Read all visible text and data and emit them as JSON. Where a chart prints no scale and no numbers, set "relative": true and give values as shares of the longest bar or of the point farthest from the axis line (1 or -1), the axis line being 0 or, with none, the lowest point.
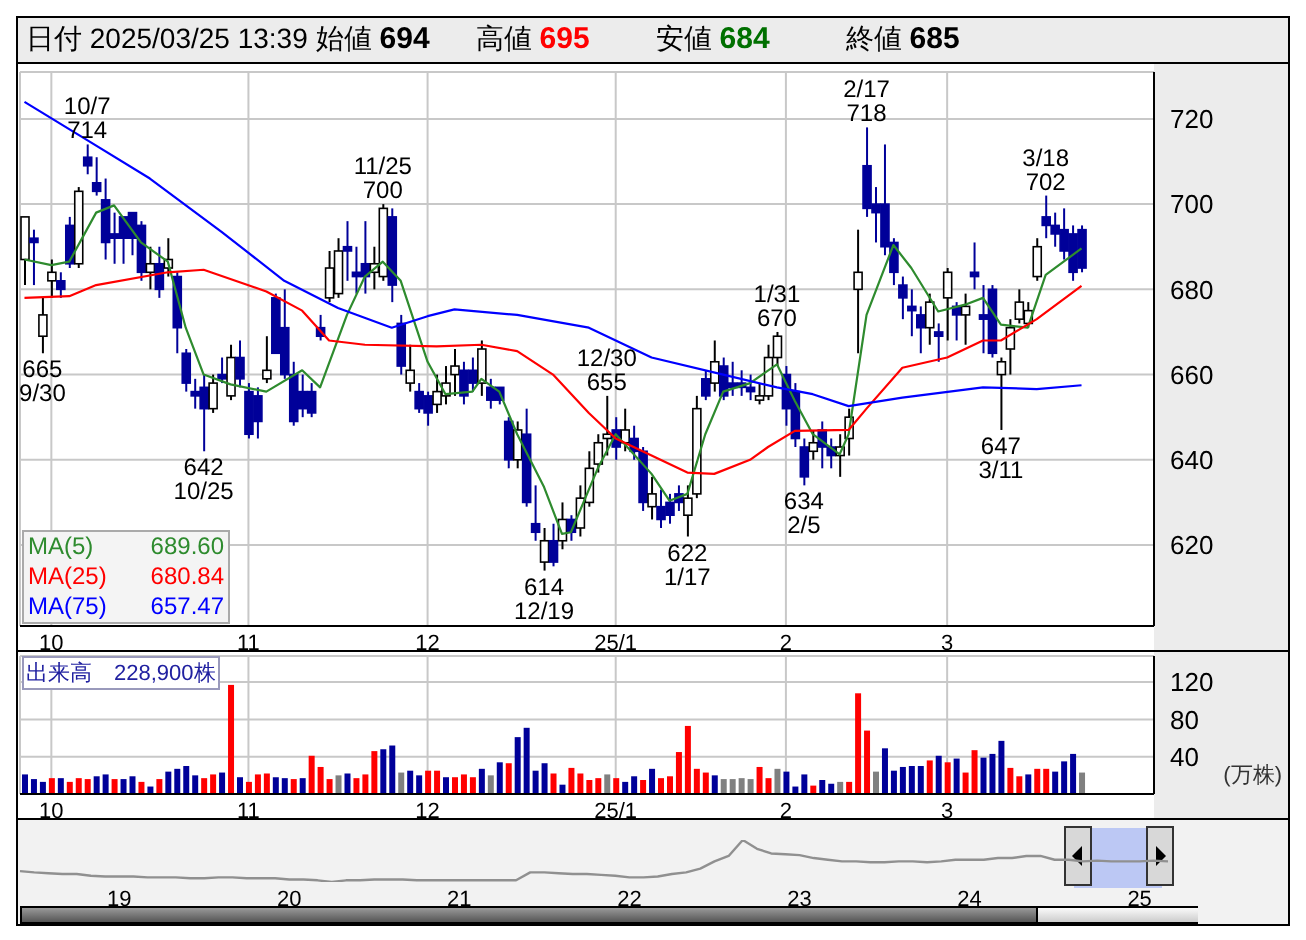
{
  "chart_data": [
    {
      "type": "candlestick",
      "title": "日付 2025/03/25 13:39",
      "grid": true,
      "ylim": [
        601,
        731
      ],
      "yticks": [
        620,
        640,
        660,
        680,
        700,
        720
      ],
      "annotations": [
        "始値 694",
        "高値 695",
        "安値 684",
        "終値 685",
        {
          "text": "10/7\n714",
          "y": 714
        },
        {
          "text": "665\n9/30",
          "y": 665
        },
        {
          "text": "642\n10/25",
          "y": 642
        },
        {
          "text": "11/25\n700",
          "y": 700
        },
        {
          "text": "614\n12/19",
          "y": 614
        },
        {
          "text": "12/30\n655",
          "y": 655
        },
        {
          "text": "622\n1/17",
          "y": 622
        },
        {
          "text": "1/31\n670",
          "y": 670
        },
        {
          "text": "634\n2/5",
          "y": 634
        },
        {
          "text": "2/17\n718",
          "y": 718
        },
        {
          "text": "647\n3/11",
          "y": 647
        },
        {
          "text": "3/18\n702",
          "y": 702
        }
      ],
      "categories": [
        null,
        null,
        null,
        "10",
        null,
        null,
        null,
        null,
        null,
        null,
        null,
        null,
        null,
        null,
        null,
        null,
        null,
        null,
        null,
        null,
        null,
        null,
        null,
        null,
        null,
        "11",
        null,
        null,
        null,
        null,
        null,
        null,
        null,
        null,
        null,
        null,
        null,
        null,
        null,
        null,
        null,
        null,
        null,
        null,
        null,
        "12",
        null,
        null,
        null,
        null,
        null,
        null,
        null,
        null,
        null,
        null,
        null,
        null,
        null,
        null,
        null,
        null,
        null,
        null,
        null,
        null,
        "25/1",
        null,
        null,
        null,
        null,
        null,
        null,
        null,
        null,
        null,
        null,
        null,
        null,
        null,
        null,
        null,
        null,
        null,
        null,
        "2",
        null,
        null,
        null,
        null,
        null,
        null,
        null,
        null,
        null,
        null,
        null,
        null,
        null,
        null,
        null,
        null,
        null,
        "3",
        null,
        null,
        null,
        null,
        null,
        null,
        null,
        null,
        null,
        null,
        null,
        null,
        null,
        null,
        null
      ],
      "ohlc": [
        [
          687,
          697,
          681,
          697
        ],
        [
          692,
          694,
          681,
          691
        ],
        [
          669,
          678,
          665,
          674
        ],
        [
          682,
          687,
          678,
          684
        ],
        [
          682,
          684,
          678,
          680
        ],
        [
          695,
          697,
          685,
          686
        ],
        [
          686,
          704,
          685,
          703
        ],
        [
          711,
          714,
          707,
          709
        ],
        [
          705,
          711,
          702,
          703
        ],
        [
          701,
          706,
          687,
          691
        ],
        [
          693,
          698,
          686,
          692
        ],
        [
          697,
          697,
          686,
          692
        ],
        [
          698,
          698,
          688,
          692
        ],
        [
          695,
          696,
          682,
          684
        ],
        [
          684,
          690,
          680,
          686
        ],
        [
          686,
          690,
          678,
          680
        ],
        [
          685,
          692,
          683,
          687
        ],
        [
          683,
          684,
          665,
          671
        ],
        [
          665,
          666,
          656,
          658
        ],
        [
          656,
          659,
          652,
          655
        ],
        [
          657,
          660,
          642,
          652
        ],
        [
          652,
          660,
          651,
          658
        ],
        [
          660,
          664,
          658,
          659
        ],
        [
          655,
          667,
          654,
          664
        ],
        [
          664,
          668,
          657,
          659
        ],
        [
          656,
          658,
          645,
          646
        ],
        [
          655,
          657,
          645,
          649
        ],
        [
          659,
          669,
          658,
          661
        ],
        [
          678,
          679,
          665,
          665
        ],
        [
          671,
          680,
          659,
          660
        ],
        [
          660,
          663,
          648,
          649
        ],
        [
          656,
          660,
          650,
          652
        ],
        [
          656,
          658,
          650,
          651
        ],
        [
          671,
          674,
          668,
          669
        ],
        [
          678,
          689,
          677,
          685
        ],
        [
          679,
          692,
          678,
          689
        ],
        [
          690,
          696,
          682,
          689
        ],
        [
          684,
          690,
          679,
          683
        ],
        [
          686,
          696,
          679,
          683
        ],
        [
          684,
          690,
          680,
          686
        ],
        [
          683,
          700,
          682,
          699
        ],
        [
          697,
          699,
          677,
          681
        ],
        [
          672,
          674,
          660,
          662
        ],
        [
          658,
          667,
          656,
          661
        ],
        [
          656,
          658,
          651,
          652
        ],
        [
          655,
          656,
          648,
          651
        ],
        [
          653,
          660,
          651,
          656
        ],
        [
          655,
          662,
          653,
          658
        ],
        [
          660,
          666,
          655,
          662
        ],
        [
          661,
          663,
          653,
          655
        ],
        [
          661,
          664,
          656,
          658
        ],
        [
          658,
          668,
          655,
          666
        ],
        [
          657,
          659,
          652,
          654
        ],
        [
          657,
          657,
          653,
          654
        ],
        [
          649,
          650,
          638,
          640
        ],
        [
          640,
          649,
          638,
          647
        ],
        [
          646,
          652,
          629,
          630
        ],
        [
          625,
          634,
          621,
          623
        ],
        [
          616,
          624,
          614,
          621
        ],
        [
          621,
          625,
          615,
          616
        ],
        [
          621,
          630,
          619,
          626
        ],
        [
          626,
          627,
          621,
          623
        ],
        [
          624,
          634,
          622,
          631
        ],
        [
          630,
          642,
          629,
          638
        ],
        [
          639,
          646,
          637,
          644
        ],
        [
          645,
          655,
          641,
          646
        ],
        [
          647,
          650,
          640,
          643
        ],
        [
          644,
          652,
          642,
          647
        ],
        [
          645,
          648,
          640,
          642
        ],
        [
          642,
          643,
          628,
          630
        ],
        [
          629,
          636,
          626,
          632
        ],
        [
          629,
          633,
          624,
          626
        ],
        [
          630,
          632,
          625,
          627
        ],
        [
          632,
          634,
          628,
          630
        ],
        [
          627,
          634,
          622,
          631
        ],
        [
          632,
          655,
          631,
          652
        ],
        [
          659,
          661,
          654,
          655
        ],
        [
          658,
          668,
          656,
          663
        ],
        [
          662,
          664,
          654,
          655
        ],
        [
          658,
          663,
          655,
          657
        ],
        [
          658,
          661,
          655,
          657
        ],
        [
          657,
          660,
          654,
          656
        ],
        [
          654,
          658,
          653,
          655
        ],
        [
          655,
          667,
          654,
          664
        ],
        [
          664,
          670,
          662,
          669
        ],
        [
          660,
          662,
          648,
          652
        ],
        [
          656,
          658,
          643,
          645
        ],
        [
          643,
          645,
          634,
          636
        ],
        [
          642,
          647,
          640,
          644
        ],
        [
          647,
          649,
          638,
          643
        ],
        [
          643,
          645,
          638,
          641
        ],
        [
          641,
          646,
          636,
          643
        ],
        [
          645,
          652,
          641,
          650
        ],
        [
          680,
          694,
          665,
          684
        ],
        [
          709,
          718,
          697,
          699
        ],
        [
          700,
          704,
          691,
          698
        ],
        [
          700,
          714,
          688,
          690
        ],
        [
          691,
          692,
          681,
          684
        ],
        [
          681,
          683,
          673,
          678
        ],
        [
          676,
          680,
          669,
          675
        ],
        [
          674,
          676,
          665,
          671
        ],
        [
          671,
          679,
          667,
          677
        ],
        [
          670,
          672,
          663,
          669
        ],
        [
          678,
          685,
          668,
          684
        ],
        [
          676,
          677,
          668,
          674
        ],
        [
          674,
          679,
          667,
          676
        ],
        [
          684,
          691,
          680,
          683
        ],
        [
          674,
          681,
          665,
          673
        ],
        [
          680,
          681,
          664,
          665
        ],
        [
          660,
          664,
          647,
          663
        ],
        [
          666,
          673,
          660,
          671
        ],
        [
          673,
          680,
          672,
          677
        ],
        [
          672,
          677,
          671,
          675
        ],
        [
          683,
          692,
          682,
          690
        ],
        [
          697,
          702,
          692,
          695
        ],
        [
          695,
          698,
          690,
          693
        ],
        [
          694,
          699,
          687,
          689
        ],
        [
          693,
          695,
          682,
          684
        ],
        [
          694,
          695,
          684,
          685
        ]
      ],
      "series": [
        {
          "name": "MA(5) 689.60",
          "type": "line",
          "color": "#2e8b2e",
          "values": [
            687,
            null,
            null,
            685.7,
            null,
            686.5,
            null,
            null,
            698,
            null,
            699.7,
            null,
            null,
            691,
            null,
            null,
            686.5,
            null,
            671,
            null,
            660,
            null,
            null,
            657.7,
            null,
            null,
            null,
            656,
            null,
            null,
            null,
            661,
            null,
            657,
            null,
            null,
            674,
            null,
            683,
            null,
            686.5,
            null,
            682,
            null,
            null,
            663,
            null,
            655.4,
            null,
            null,
            656,
            659,
            null,
            656,
            null,
            646,
            null,
            null,
            633.6,
            null,
            622.6,
            623,
            null,
            null,
            638,
            null,
            646,
            null,
            null,
            null,
            636.7,
            null,
            630.4,
            null,
            632,
            null,
            646,
            null,
            656,
            null,
            null,
            658,
            null,
            null,
            662.4,
            null,
            653.8,
            null,
            646,
            null,
            null,
            641.3,
            646,
            null,
            674,
            null,
            null,
            690.4,
            null,
            685,
            null,
            null,
            674.8,
            null,
            null,
            676.4,
            null,
            678,
            null,
            671.7,
            null,
            null,
            671,
            null,
            683.4,
            null,
            null,
            null,
            689.6
          ]
        },
        {
          "name": "MA(25) 680.84",
          "type": "line",
          "color": "#ff0000",
          "values": [
            678,
            null,
            null,
            null,
            null,
            678.4,
            null,
            null,
            681,
            null,
            null,
            null,
            null,
            null,
            null,
            null,
            684,
            null,
            null,
            null,
            684.6,
            null,
            null,
            null,
            null,
            null,
            null,
            679.5,
            null,
            null,
            null,
            675,
            null,
            null,
            668,
            null,
            null,
            null,
            667,
            null,
            null,
            null,
            null,
            null,
            null,
            null,
            666.6,
            null,
            null,
            null,
            null,
            667,
            null,
            null,
            null,
            665.5,
            null,
            null,
            null,
            660,
            null,
            null,
            null,
            651,
            null,
            null,
            645,
            null,
            null,
            null,
            641,
            null,
            null,
            null,
            637,
            null,
            null,
            636.7,
            null,
            null,
            null,
            640,
            null,
            643,
            null,
            null,
            646.8,
            null,
            null,
            null,
            null,
            null,
            647,
            null,
            652,
            null,
            null,
            null,
            661.6,
            null,
            null,
            null,
            null,
            664,
            null,
            null,
            null,
            668,
            null,
            668,
            null,
            null,
            null,
            673,
            null,
            null,
            null,
            null,
            680.8
          ]
        },
        {
          "name": "MA(75) 657.47",
          "type": "line",
          "color": "#0000ff",
          "values": [
            724,
            null,
            null,
            null,
            null,
            null,
            null,
            715,
            null,
            null,
            null,
            null,
            null,
            null,
            706,
            null,
            null,
            null,
            null,
            null,
            null,
            null,
            693.5,
            null,
            null,
            null,
            null,
            null,
            null,
            682,
            null,
            null,
            null,
            null,
            null,
            675.6,
            null,
            null,
            null,
            null,
            null,
            671,
            null,
            null,
            null,
            673.7,
            null,
            null,
            675.3,
            null,
            null,
            null,
            null,
            null,
            null,
            674,
            null,
            null,
            null,
            null,
            null,
            null,
            null,
            671,
            null,
            null,
            null,
            null,
            null,
            null,
            664,
            null,
            null,
            null,
            null,
            null,
            null,
            null,
            660,
            null,
            null,
            null,
            null,
            null,
            657,
            null,
            null,
            null,
            655.4,
            null,
            null,
            null,
            652.6,
            null,
            null,
            null,
            null,
            null,
            654.6,
            null,
            null,
            null,
            null,
            null,
            null,
            null,
            null,
            657,
            null,
            null,
            null,
            null,
            null,
            656.6,
            null,
            null,
            null,
            null,
            657.5
          ]
        }
      ]
    },
    {
      "type": "bar",
      "title": "出来高　228,900株",
      "ylabel": "(万株)",
      "grid": true,
      "ylim": [
        0,
        148
      ],
      "yticks": [
        40,
        80,
        120
      ],
      "categories": [
        null,
        null,
        null,
        "10",
        null,
        null,
        null,
        null,
        null,
        null,
        null,
        null,
        null,
        null,
        null,
        null,
        null,
        null,
        null,
        null,
        null,
        null,
        null,
        null,
        null,
        "11",
        null,
        null,
        null,
        null,
        null,
        null,
        null,
        null,
        null,
        null,
        null,
        null,
        null,
        null,
        null,
        null,
        null,
        null,
        null,
        "12",
        null,
        null,
        null,
        null,
        null,
        null,
        null,
        null,
        null,
        null,
        null,
        null,
        null,
        null,
        null,
        null,
        null,
        null,
        null,
        null,
        "25/1",
        null,
        null,
        null,
        null,
        null,
        null,
        null,
        null,
        null,
        null,
        null,
        null,
        null,
        null,
        null,
        null,
        null,
        null,
        "2",
        null,
        null,
        null,
        null,
        null,
        null,
        null,
        null,
        null,
        null,
        null,
        null,
        null,
        null,
        null,
        null,
        null,
        "3",
        null,
        null,
        null,
        null,
        null,
        null,
        null,
        null,
        null,
        null,
        null,
        null,
        null,
        null,
        null
      ],
      "values": [
        21,
        16,
        13,
        17,
        17,
        13,
        17,
        16,
        19,
        21,
        16,
        16,
        19,
        13,
        8,
        16,
        24,
        27,
        30,
        20,
        17,
        21,
        23,
        117,
        18,
        13,
        21,
        22,
        18,
        17,
        16,
        17,
        41,
        29,
        16,
        20,
        22,
        17,
        21,
        46,
        48,
        52,
        23,
        25,
        20,
        25,
        25,
        18,
        18,
        21,
        18,
        27,
        20,
        34,
        33,
        61,
        71,
        25,
        33,
        22,
        10,
        28,
        22,
        15,
        17,
        21,
        17,
        13,
        19,
        15,
        27,
        17,
        19,
        45,
        73,
        27,
        23,
        20,
        16,
        16,
        17,
        16,
        29,
        17,
        27,
        24,
        8,
        21,
        9,
        15,
        11,
        13,
        13,
        108,
        68,
        24,
        49,
        25,
        29,
        30,
        30,
        36,
        41,
        34,
        38,
        23,
        47,
        39,
        43,
        57,
        28,
        19,
        21,
        27,
        27,
        24,
        35,
        43,
        23
      ],
      "colors": [
        "#000099",
        "#000099",
        "#000099",
        "#ff0000",
        "#000099",
        "#ff0000",
        "#ff0000",
        "#ff0000",
        "#000099",
        "#000099",
        "#ff0000",
        "#000099",
        "#000099",
        "#ff0000",
        "#000099",
        "#ff0000",
        "#000099",
        "#000099",
        "#000099",
        "#000099",
        "#ff0000",
        "#ff0000",
        "#000099",
        "#ff0000",
        "#000099",
        "#ff0000",
        "#ff0000",
        "#ff0000",
        "#000099",
        "#000099",
        "#ff0000",
        "#000099",
        "#ff0000",
        "#ff0000",
        "#ff0000",
        "#808080",
        "#000099",
        "#ff0000",
        "#ff0000",
        "#ff0000",
        "#000099",
        "#000099",
        "#808080",
        "#000099",
        "#000099",
        "#ff0000",
        "#ff0000",
        "#000099",
        "#ff0000",
        "#ff0000",
        "#ff0000",
        "#000099",
        "#808080",
        "#000099",
        "#ff0000",
        "#000099",
        "#000099",
        "#000099",
        "#000099",
        "#ff0000",
        "#000099",
        "#ff0000",
        "#ff0000",
        "#ff0000",
        "#ff0000",
        "#808080",
        "#ff0000",
        "#000099",
        "#000099",
        "#ff0000",
        "#000099",
        "#ff0000",
        "#ff0000",
        "#ff0000",
        "#ff0000",
        "#ff0000",
        "#ff0000",
        "#000099",
        "#808080",
        "#808080",
        "#808080",
        "#808080",
        "#ff0000",
        "#ff0000",
        "#808080",
        "#000099",
        "#000099",
        "#000099",
        "#ff0000",
        "#000099",
        "#000099",
        "#808080",
        "#ff0000",
        "#ff0000",
        "#ff0000",
        "#808080",
        "#000099",
        "#000099",
        "#000099",
        "#000099",
        "#000099",
        "#ff0000",
        "#000099",
        "#ff0000",
        "#000099",
        "#ff0000",
        "#ff0000",
        "#000099",
        "#000099",
        "#000099",
        "#ff0000",
        "#ff0000",
        "#000099",
        "#ff0000",
        "#ff0000",
        "#000099",
        "#000099",
        "#000099",
        "#808080"
      ]
    },
    {
      "type": "line",
      "relative": true,
      "color": "#909090",
      "categories": [
        null,
        null,
        null,
        null,
        null,
        null,
        null,
        "19",
        null,
        null,
        null,
        null,
        null,
        null,
        null,
        null,
        null,
        null,
        null,
        "20",
        null,
        null,
        null,
        null,
        null,
        null,
        null,
        null,
        null,
        null,
        null,
        "21",
        null,
        null,
        null,
        null,
        null,
        null,
        null,
        null,
        null,
        null,
        null,
        "22",
        null,
        null,
        null,
        null,
        null,
        null,
        null,
        null,
        null,
        null,
        null,
        "23",
        null,
        null,
        null,
        null,
        null,
        null,
        null,
        null,
        null,
        null,
        null,
        "24",
        null,
        null,
        null,
        null,
        null,
        null,
        null,
        null,
        null,
        null,
        null,
        "25",
        null,
        null
      ],
      "values": [
        0.26,
        0.23,
        0.21,
        0.19,
        0.19,
        0.15,
        0.13,
        0.13,
        0.13,
        0.11,
        0.11,
        0.11,
        0.09,
        0.09,
        0.11,
        0.11,
        0.09,
        0.09,
        0.09,
        0.06,
        0.06,
        0.04,
        0,
        0.04,
        0.04,
        0.06,
        0.06,
        0.06,
        0.04,
        0.04,
        0.04,
        0.04,
        0.04,
        0.04,
        0.04,
        0.04,
        0.23,
        0.23,
        0.21,
        0.19,
        0.19,
        0.17,
        0.15,
        0.11,
        0.11,
        0.13,
        0.19,
        0.23,
        0.32,
        0.49,
        0.62,
        1,
        0.79,
        0.68,
        0.66,
        0.64,
        0.57,
        0.53,
        0.49,
        0.49,
        0.47,
        0.47,
        0.49,
        0.49,
        0.47,
        0.49,
        0.53,
        0.53,
        0.53,
        0.57,
        0.57,
        0.62,
        0.62,
        0.53,
        0.53,
        0.49,
        0.51,
        0.49,
        0.49,
        0.49,
        0.51,
        0.49
      ]
    }
  ]
}
